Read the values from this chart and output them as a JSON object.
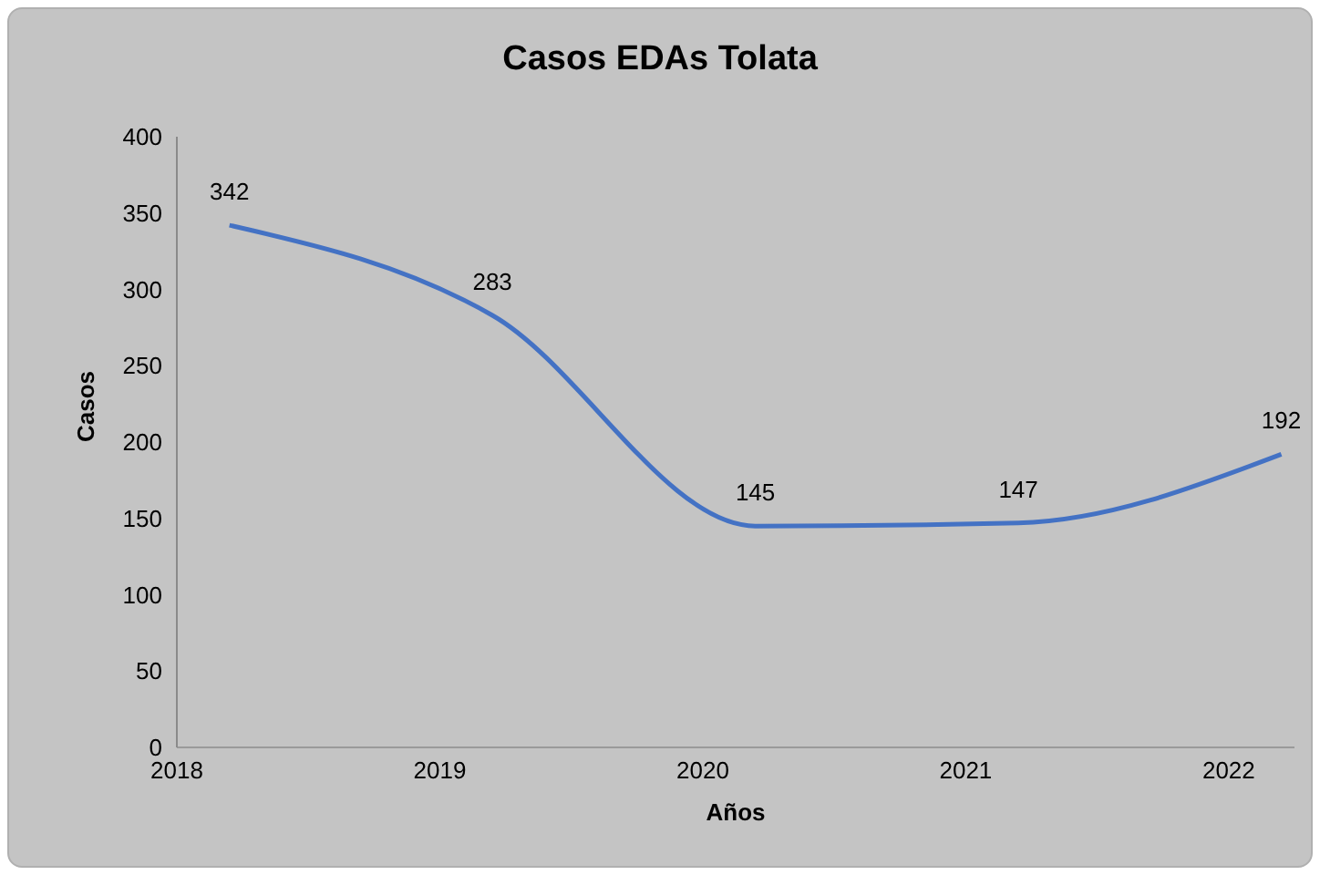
{
  "chart_data": {
    "type": "line",
    "title": "Casos EDAs Tolata",
    "xlabel": "Años",
    "ylabel": "Casos",
    "x": [
      2018.2,
      2019.2,
      2020.2,
      2021.2,
      2022.2
    ],
    "series": [
      {
        "color": "#4472c4",
        "values": [
          342,
          283,
          145,
          147,
          192
        ]
      }
    ],
    "xlim": [
      2018,
      2022.25
    ],
    "xticks": [
      2018,
      2019,
      2020,
      2021,
      2022
    ],
    "ylim": [
      0,
      400
    ],
    "yticks": [
      0,
      50,
      100,
      150,
      200,
      250,
      300,
      350,
      400
    ],
    "data_labels": true,
    "marker": "none",
    "line_style": "solid",
    "legend": false,
    "grid": false
  }
}
